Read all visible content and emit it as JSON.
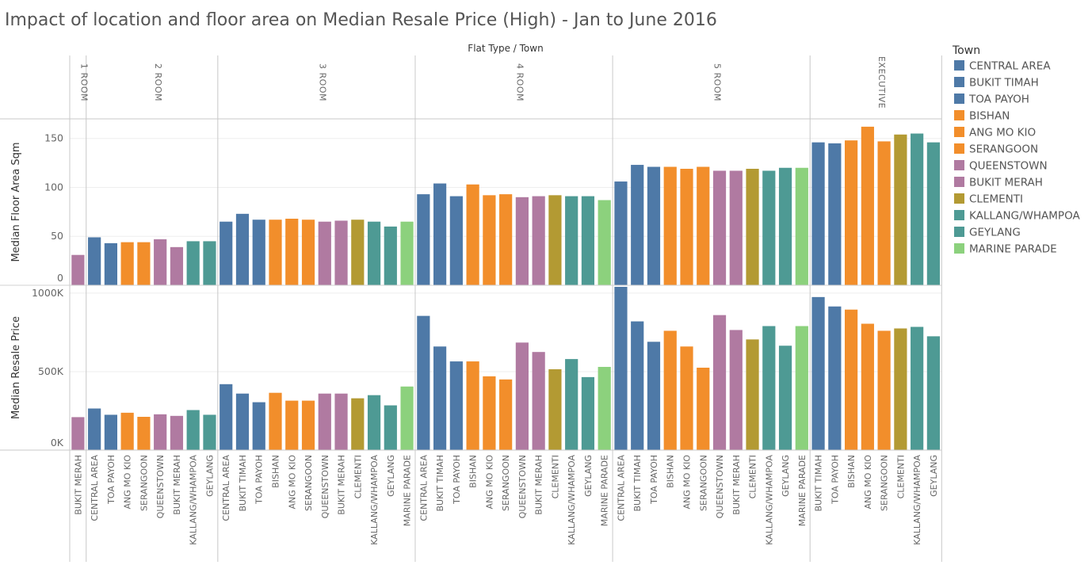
{
  "chart_data": {
    "type": "bar",
    "title": "Impact of location and floor area on Median Resale Price (High) - Jan to June 2016",
    "column_header": "Flat Type / Town",
    "measures": [
      {
        "key": "area",
        "label": "Median Floor Area Sqm",
        "ylim": [
          0,
          170
        ],
        "ticks": [
          0,
          50,
          100,
          150
        ],
        "tick_labels": [
          "0",
          "50",
          "100",
          "150"
        ]
      },
      {
        "key": "price",
        "label": "Median Resale Price",
        "ylim": [
          0,
          1050000
        ],
        "ticks": [
          0,
          500000,
          1000000
        ],
        "tick_labels": [
          "0K",
          "500K",
          "1000K"
        ]
      }
    ],
    "legend": {
      "title": "Town",
      "placement": "right",
      "items": [
        {
          "name": "CENTRAL AREA",
          "color": "#4e79a7"
        },
        {
          "name": "BUKIT TIMAH",
          "color": "#4e79a7"
        },
        {
          "name": "TOA PAYOH",
          "color": "#4e79a7"
        },
        {
          "name": "BISHAN",
          "color": "#f28e2b"
        },
        {
          "name": "ANG MO KIO",
          "color": "#f28e2b"
        },
        {
          "name": "SERANGOON",
          "color": "#f28e2b"
        },
        {
          "name": "QUEENSTOWN",
          "color": "#b07aa1"
        },
        {
          "name": "BUKIT MERAH",
          "color": "#b07aa1"
        },
        {
          "name": "CLEMENTI",
          "color": "#b39a33"
        },
        {
          "name": "KALLANG/WHAMPOA",
          "color": "#4e9a94"
        },
        {
          "name": "GEYLANG",
          "color": "#4e9a94"
        },
        {
          "name": "MARINE PARADE",
          "color": "#8cd17d"
        }
      ]
    },
    "groups": [
      {
        "label": "1 ROOM",
        "bars": [
          {
            "town": "BUKIT MERAH",
            "area": 31,
            "price": 210000
          }
        ]
      },
      {
        "label": "2 ROOM",
        "bars": [
          {
            "town": "CENTRAL AREA",
            "area": 49,
            "price": 265000
          },
          {
            "town": "TOA PAYOH",
            "area": 43,
            "price": 225000
          },
          {
            "town": "ANG MO KIO",
            "area": 44,
            "price": 238000
          },
          {
            "town": "SERANGOON",
            "area": 44,
            "price": 212000
          },
          {
            "town": "QUEENSTOWN",
            "area": 47,
            "price": 228000
          },
          {
            "town": "BUKIT MERAH",
            "area": 39,
            "price": 218000
          },
          {
            "town": "KALLANG/WHAMPOA",
            "area": 45,
            "price": 255000
          },
          {
            "town": "GEYLANG",
            "area": 45,
            "price": 225000
          }
        ]
      },
      {
        "label": "3 ROOM",
        "bars": [
          {
            "town": "CENTRAL AREA",
            "area": 65,
            "price": 420000
          },
          {
            "town": "BUKIT TIMAH",
            "area": 73,
            "price": 360000
          },
          {
            "town": "TOA PAYOH",
            "area": 67,
            "price": 305000
          },
          {
            "town": "BISHAN",
            "area": 67,
            "price": 365000
          },
          {
            "town": "ANG MO KIO",
            "area": 68,
            "price": 315000
          },
          {
            "town": "SERANGOON",
            "area": 67,
            "price": 315000
          },
          {
            "town": "QUEENSTOWN",
            "area": 65,
            "price": 360000
          },
          {
            "town": "BUKIT MERAH",
            "area": 66,
            "price": 360000
          },
          {
            "town": "CLEMENTI",
            "area": 67,
            "price": 330000
          },
          {
            "town": "KALLANG/WHAMPOA",
            "area": 65,
            "price": 350000
          },
          {
            "town": "GEYLANG",
            "area": 60,
            "price": 285000
          },
          {
            "town": "MARINE PARADE",
            "area": 65,
            "price": 405000
          }
        ]
      },
      {
        "label": "4 ROOM",
        "bars": [
          {
            "town": "CENTRAL AREA",
            "area": 93,
            "price": 855000
          },
          {
            "town": "BUKIT TIMAH",
            "area": 104,
            "price": 660000
          },
          {
            "town": "TOA PAYOH",
            "area": 91,
            "price": 565000
          },
          {
            "town": "BISHAN",
            "area": 103,
            "price": 565000
          },
          {
            "town": "ANG MO KIO",
            "area": 92,
            "price": 470000
          },
          {
            "town": "SERANGOON",
            "area": 93,
            "price": 450000
          },
          {
            "town": "QUEENSTOWN",
            "area": 90,
            "price": 685000
          },
          {
            "town": "BUKIT MERAH",
            "area": 91,
            "price": 625000
          },
          {
            "town": "CLEMENTI",
            "area": 92,
            "price": 515000
          },
          {
            "town": "KALLANG/WHAMPOA",
            "area": 91,
            "price": 580000
          },
          {
            "town": "GEYLANG",
            "area": 91,
            "price": 465000
          },
          {
            "town": "MARINE PARADE",
            "area": 87,
            "price": 530000
          }
        ]
      },
      {
        "label": "5 ROOM",
        "bars": [
          {
            "town": "CENTRAL AREA",
            "area": 106,
            "price": 1040000
          },
          {
            "town": "BUKIT TIMAH",
            "area": 123,
            "price": 820000
          },
          {
            "town": "TOA PAYOH",
            "area": 121,
            "price": 690000
          },
          {
            "town": "BISHAN",
            "area": 121,
            "price": 760000
          },
          {
            "town": "ANG MO KIO",
            "area": 119,
            "price": 660000
          },
          {
            "town": "SERANGOON",
            "area": 121,
            "price": 525000
          },
          {
            "town": "QUEENSTOWN",
            "area": 117,
            "price": 860000
          },
          {
            "town": "BUKIT MERAH",
            "area": 117,
            "price": 765000
          },
          {
            "town": "CLEMENTI",
            "area": 119,
            "price": 705000
          },
          {
            "town": "KALLANG/WHAMPOA",
            "area": 117,
            "price": 790000
          },
          {
            "town": "GEYLANG",
            "area": 120,
            "price": 665000
          },
          {
            "town": "MARINE PARADE",
            "area": 120,
            "price": 790000
          }
        ]
      },
      {
        "label": "EXECUTIVE",
        "bars": [
          {
            "town": "BUKIT TIMAH",
            "area": 146,
            "price": 975000
          },
          {
            "town": "TOA PAYOH",
            "area": 145,
            "price": 915000
          },
          {
            "town": "BISHAN",
            "area": 148,
            "price": 895000
          },
          {
            "town": "ANG MO KIO",
            "area": 162,
            "price": 805000
          },
          {
            "town": "SERANGOON",
            "area": 147,
            "price": 760000
          },
          {
            "town": "CLEMENTI",
            "area": 154,
            "price": 775000
          },
          {
            "town": "KALLANG/WHAMPOA",
            "area": 155,
            "price": 785000
          },
          {
            "town": "GEYLANG",
            "area": 146,
            "price": 725000
          }
        ]
      }
    ]
  }
}
